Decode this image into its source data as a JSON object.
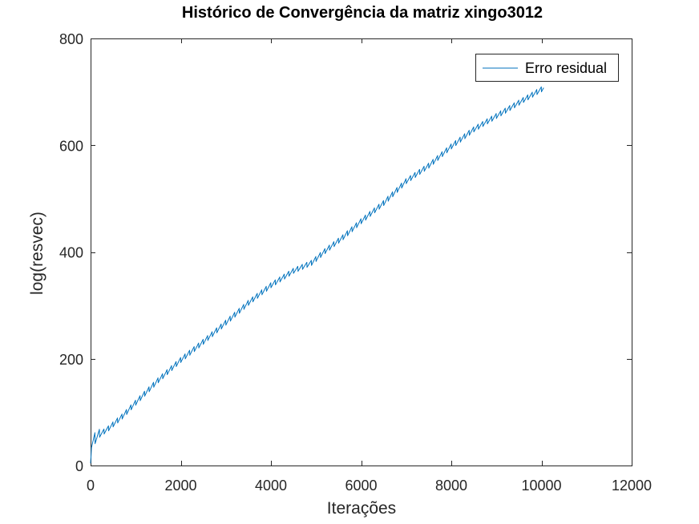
{
  "chart_data": {
    "type": "line",
    "title": "Histórico de Convergência da matriz xingo3012",
    "xlabel": "Iterações",
    "ylabel": "log(resvec)",
    "xlim": [
      0,
      12000
    ],
    "ylim": [
      0,
      800
    ],
    "xticks": [
      0,
      2000,
      4000,
      6000,
      8000,
      10000,
      12000
    ],
    "yticks": [
      0,
      200,
      400,
      600,
      800
    ],
    "xtick_labels": [
      "0",
      "2000",
      "4000",
      "6000",
      "8000",
      "10000",
      "12000"
    ],
    "ytick_labels": [
      "0",
      "200",
      "400",
      "600",
      "800"
    ],
    "grid": false,
    "legend_position": "top-right",
    "series": [
      {
        "name": "Erro residual",
        "color": "#0072BD",
        "trend": {
          "x": [
            0,
            20,
            100,
            200,
            400,
            700,
            1000,
            1500,
            2000,
            2500,
            3000,
            3500,
            4000,
            4500,
            4900,
            5200,
            5600,
            6000,
            6500,
            7000,
            7500,
            8000,
            8500,
            9000,
            9500,
            10000,
            10050
          ],
          "y": [
            15,
            40,
            52,
            58,
            70,
            92,
            118,
            160,
            198,
            232,
            268,
            305,
            338,
            365,
            380,
            402,
            428,
            458,
            492,
            533,
            562,
            598,
            630,
            655,
            680,
            705,
            708
          ]
        },
        "sawtooth_period": 100,
        "sawtooth_amplitude": 10
      }
    ]
  }
}
